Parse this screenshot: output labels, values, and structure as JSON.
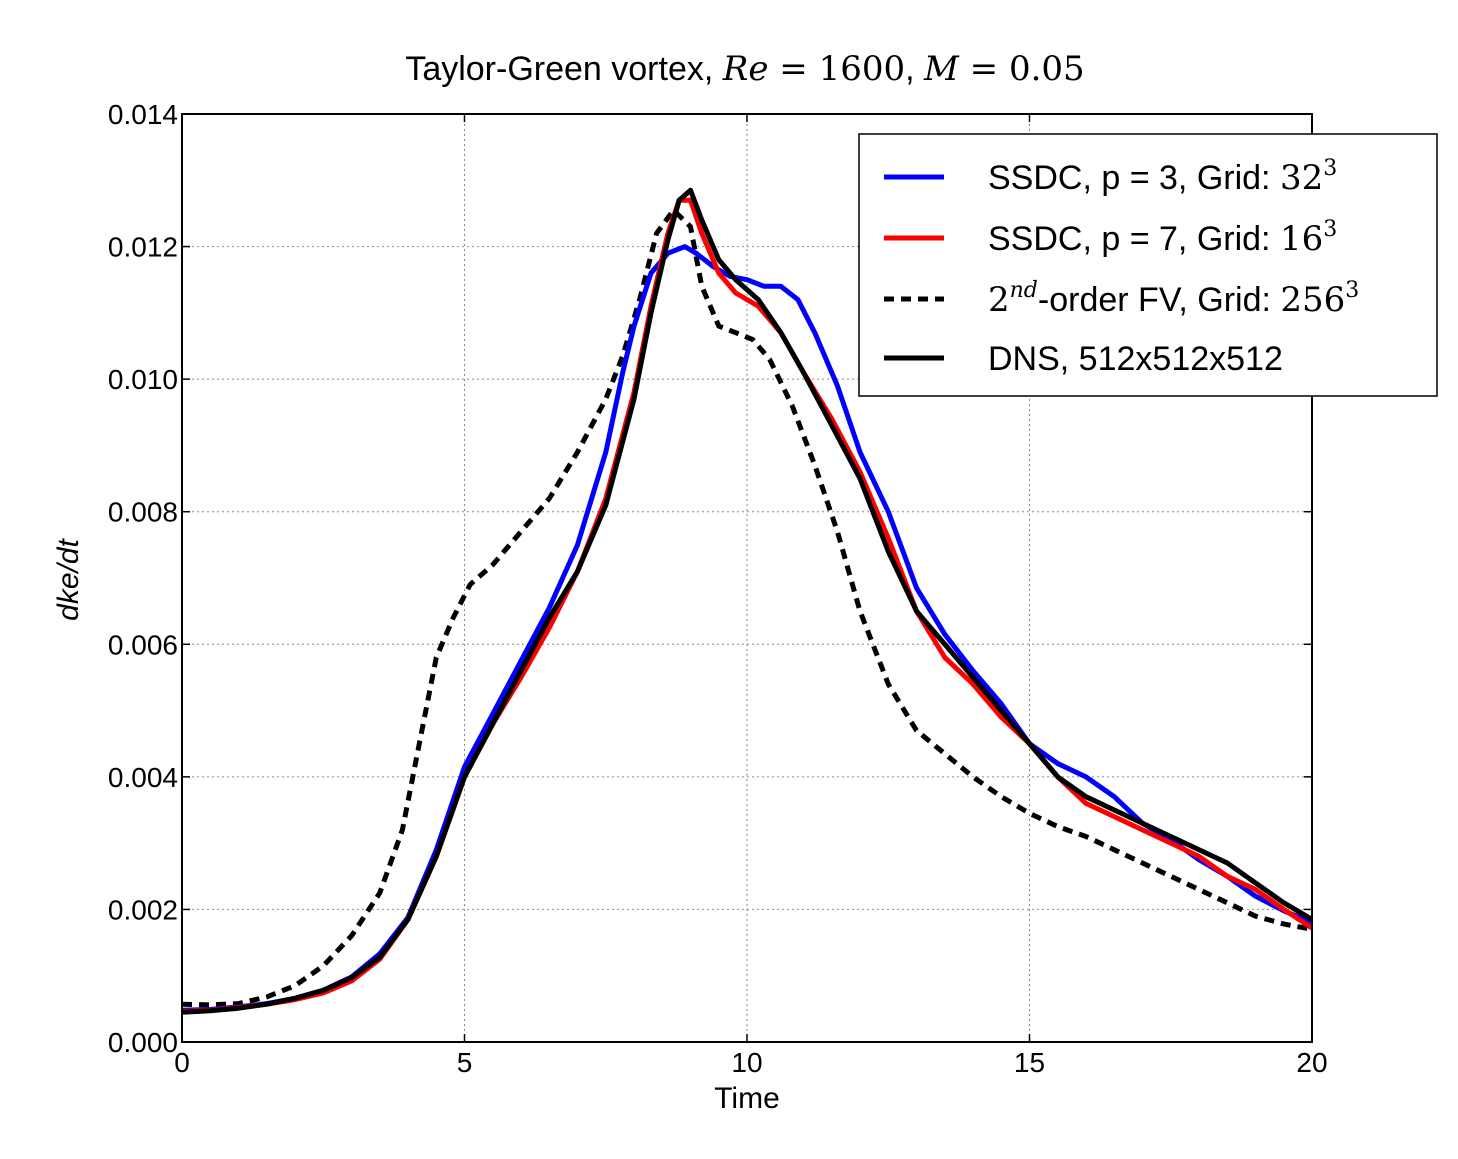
{
  "chart_data": {
    "type": "line",
    "title": {
      "prefix": "Taylor-Green vortex, ",
      "re_var": "Re",
      "re_eq": " = ",
      "re_val": "1600",
      "sep": ", ",
      "m_var": "M",
      "m_eq": " = ",
      "m_val": "0.05"
    },
    "xlabel": "Time",
    "ylabel": "dke/dt",
    "xlim": [
      0,
      20
    ],
    "ylim": [
      0,
      0.014
    ],
    "xticks": [
      "0",
      "5",
      "10",
      "15",
      "20"
    ],
    "yticks": [
      "0.000",
      "0.002",
      "0.004",
      "0.006",
      "0.008",
      "0.010",
      "0.012",
      "0.014"
    ],
    "grid": true,
    "legend_position": "top-right",
    "series": [
      {
        "key": "ssdc_p3",
        "legend_main": "SSDC, p = 3, Grid: ",
        "legend_base": "32",
        "legend_sup": "3",
        "color": "#0000ff",
        "dash": "solid",
        "x": [
          0,
          0.5,
          1,
          1.5,
          2,
          2.5,
          3,
          3.5,
          4,
          4.5,
          5,
          5.5,
          6,
          6.5,
          7,
          7.5,
          7.8,
          8,
          8.3,
          8.6,
          8.9,
          9.1,
          9.4,
          9.7,
          10,
          10.3,
          10.6,
          10.9,
          11.2,
          11.6,
          12,
          12.5,
          13,
          13.5,
          14,
          14.5,
          15,
          15.5,
          16,
          16.5,
          17,
          17.5,
          18,
          18.5,
          19,
          19.5,
          20
        ],
        "y": [
          0.00048,
          0.00049,
          0.00053,
          0.00058,
          0.00066,
          0.00078,
          0.00098,
          0.00133,
          0.00188,
          0.0029,
          0.00415,
          0.00495,
          0.00575,
          0.00655,
          0.0075,
          0.0089,
          0.0101,
          0.0108,
          0.0116,
          0.0119,
          0.012,
          0.0119,
          0.0117,
          0.01155,
          0.0115,
          0.0114,
          0.0114,
          0.0112,
          0.0107,
          0.0099,
          0.0089,
          0.008,
          0.00685,
          0.00615,
          0.0056,
          0.0051,
          0.0045,
          0.0042,
          0.004,
          0.0037,
          0.0033,
          0.00305,
          0.00275,
          0.0025,
          0.0022,
          0.00198,
          0.0018
        ]
      },
      {
        "key": "ssdc_p7",
        "legend_main": "SSDC, p = 7, Grid: ",
        "legend_base": "16",
        "legend_sup": "3",
        "color": "#ff0000",
        "dash": "solid",
        "x": [
          0,
          0.5,
          1,
          1.5,
          2,
          2.5,
          3,
          3.5,
          4,
          4.5,
          5,
          5.5,
          6,
          6.5,
          7,
          7.5,
          8,
          8.3,
          8.6,
          8.8,
          9,
          9.2,
          9.5,
          9.8,
          10.2,
          10.6,
          11,
          11.5,
          12,
          12.5,
          13,
          13.5,
          14,
          14.5,
          15,
          15.5,
          16,
          16.5,
          17,
          17.5,
          18,
          18.5,
          19,
          19.5,
          20
        ],
        "y": [
          0.00046,
          0.00048,
          0.00052,
          0.00057,
          0.00064,
          0.00074,
          0.00092,
          0.00125,
          0.00185,
          0.0028,
          0.004,
          0.0048,
          0.0055,
          0.00625,
          0.0071,
          0.0082,
          0.0098,
          0.0111,
          0.0122,
          0.0127,
          0.0127,
          0.0122,
          0.0116,
          0.0113,
          0.0111,
          0.0107,
          0.0101,
          0.0094,
          0.0086,
          0.0076,
          0.0065,
          0.0058,
          0.0054,
          0.0049,
          0.0045,
          0.004,
          0.0036,
          0.0034,
          0.0032,
          0.003,
          0.0028,
          0.0025,
          0.0023,
          0.002,
          0.00172
        ]
      },
      {
        "key": "fv_2nd",
        "legend_sup_main": "nd",
        "legend_base": "2",
        "legend_main": "-order FV, Grid: ",
        "legend_grid_base": "256",
        "legend_grid_sup": "3",
        "color": "#000000",
        "dash": "dashed",
        "x": [
          0,
          0.5,
          1,
          1.5,
          2,
          2.5,
          3,
          3.5,
          3.9,
          4.2,
          4.5,
          4.8,
          5.1,
          5.5,
          6,
          6.5,
          7,
          7.5,
          7.8,
          8.1,
          8.4,
          8.7,
          9,
          9.2,
          9.5,
          9.8,
          10.1,
          10.4,
          10.8,
          11.2,
          11.6,
          12,
          12.5,
          13,
          13.5,
          14,
          14.5,
          15,
          15.5,
          16,
          16.5,
          17,
          17.5,
          18,
          18.5,
          19,
          19.5,
          20
        ],
        "y": [
          0.00057,
          0.00056,
          0.00058,
          0.00068,
          0.00085,
          0.00115,
          0.0016,
          0.00225,
          0.0032,
          0.0045,
          0.0058,
          0.0064,
          0.0069,
          0.0072,
          0.0077,
          0.0082,
          0.0089,
          0.0097,
          0.01035,
          0.0112,
          0.0122,
          0.01255,
          0.0123,
          0.0114,
          0.0108,
          0.0107,
          0.0106,
          0.0103,
          0.0096,
          0.0087,
          0.0077,
          0.0065,
          0.0054,
          0.0047,
          0.00435,
          0.004,
          0.0037,
          0.00345,
          0.00325,
          0.0031,
          0.0029,
          0.0027,
          0.0025,
          0.0023,
          0.0021,
          0.0019,
          0.00178,
          0.0017
        ]
      },
      {
        "key": "dns",
        "legend_main": "DNS, 512x512x512",
        "color": "#000000",
        "dash": "solid",
        "x": [
          0,
          0.5,
          1,
          1.5,
          2,
          2.5,
          3,
          3.5,
          4,
          4.5,
          5,
          5.5,
          6,
          6.5,
          7,
          7.5,
          8,
          8.3,
          8.6,
          8.8,
          9,
          9.2,
          9.5,
          9.8,
          10.2,
          10.6,
          11,
          11.5,
          12,
          12.5,
          13,
          13.5,
          14,
          14.5,
          15,
          15.5,
          16,
          16.5,
          17,
          17.5,
          18,
          18.5,
          19,
          19.5,
          20
        ],
        "y": [
          0.00045,
          0.00047,
          0.00051,
          0.00057,
          0.00066,
          0.00078,
          0.00097,
          0.00128,
          0.00185,
          0.0028,
          0.004,
          0.0048,
          0.0056,
          0.0064,
          0.0071,
          0.0081,
          0.0097,
          0.011,
          0.0121,
          0.0127,
          0.01285,
          0.0124,
          0.0118,
          0.0115,
          0.0112,
          0.0107,
          0.0101,
          0.0093,
          0.0085,
          0.0074,
          0.0065,
          0.006,
          0.0055,
          0.005,
          0.0045,
          0.004,
          0.0037,
          0.0035,
          0.0033,
          0.0031,
          0.0029,
          0.0027,
          0.0024,
          0.0021,
          0.00185
        ]
      }
    ]
  }
}
